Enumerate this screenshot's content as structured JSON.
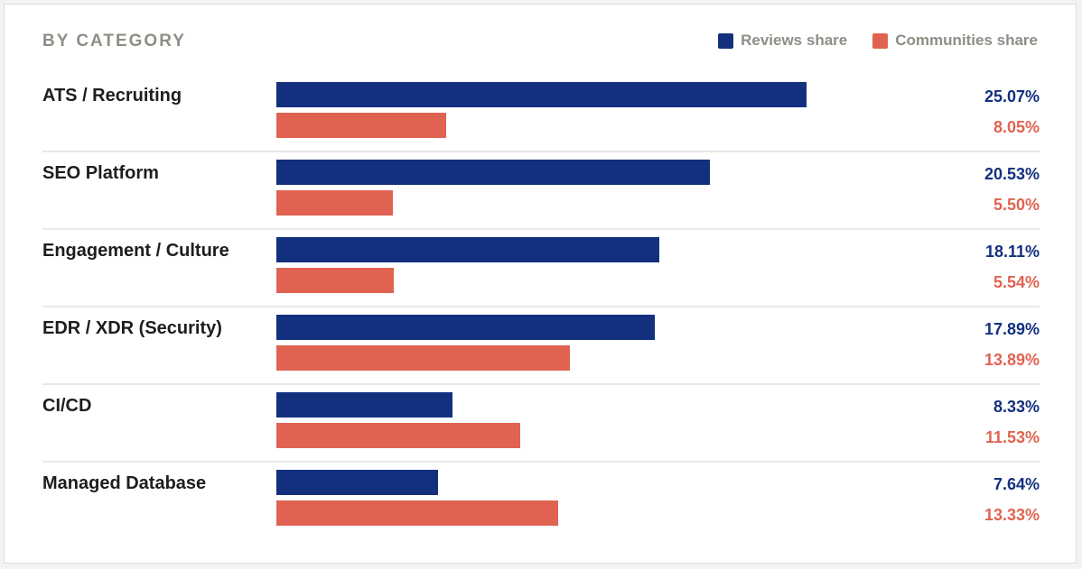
{
  "chart_data": {
    "type": "bar",
    "orientation": "horizontal",
    "title": "BY CATEGORY",
    "categories": [
      "ATS / Recruiting",
      "SEO Platform",
      "Engagement / Culture",
      "EDR / XDR (Security)",
      "CI/CD",
      "Managed Database"
    ],
    "series": [
      {
        "name": "Reviews share",
        "color": "#13307f",
        "values": [
          25.07,
          20.53,
          18.11,
          17.89,
          8.33,
          7.64
        ],
        "labels": [
          "25.07%",
          "20.53%",
          "18.11%",
          "17.89%",
          "8.33%",
          "7.64%"
        ]
      },
      {
        "name": "Communities share",
        "color": "#e06352",
        "values": [
          8.05,
          5.5,
          5.54,
          13.89,
          11.53,
          13.33
        ],
        "labels": [
          "8.05%",
          "5.50%",
          "5.54%",
          "13.89%",
          "11.53%",
          "13.33%"
        ]
      }
    ],
    "xlim": [
      0,
      30
    ],
    "legend_position": "top-right",
    "grid": false
  }
}
